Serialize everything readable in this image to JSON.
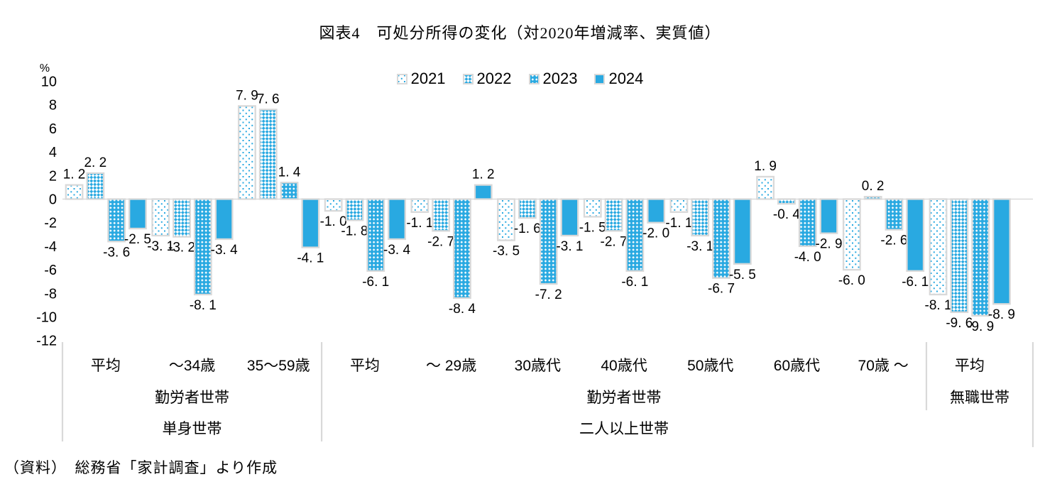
{
  "source_note": "（資料）　総務省「家計調査」より作成",
  "colors": {
    "accent": "#29A9E1",
    "outline": "#D9D9D9",
    "text": "#000000"
  },
  "chart_data": {
    "type": "bar",
    "title": "図表4　可処分所得の変化（対2020年増減率、実質値）",
    "xlabel": "",
    "ylabel": "%",
    "ylim": [
      -12,
      10
    ],
    "yticks": [
      10,
      8,
      6,
      4,
      2,
      0,
      -2,
      -4,
      -6,
      -8,
      -10,
      -12
    ],
    "grid": false,
    "legend_position": "top",
    "value_labels": true,
    "categories": [
      "平均",
      "～34歳",
      "35～59歳",
      "平均",
      "～ 29歳",
      "30歳代",
      "40歳代",
      "50歳代",
      "60歳代",
      "70歳 ～",
      "平均"
    ],
    "series": [
      {
        "name": "2021",
        "pattern": "dots",
        "values": [
          1.2,
          -3.1,
          7.9,
          -1.0,
          -1.1,
          -3.5,
          -1.5,
          -1.1,
          1.9,
          -6.0,
          -8.1
        ]
      },
      {
        "name": "2022",
        "pattern": "check-light",
        "values": [
          2.2,
          -3.2,
          7.6,
          -1.8,
          -2.7,
          -1.6,
          -2.7,
          -3.1,
          -0.4,
          0.2,
          -9.6
        ]
      },
      {
        "name": "2023",
        "pattern": "check-dense",
        "values": [
          -3.6,
          -8.1,
          1.4,
          -6.1,
          -8.4,
          -7.2,
          -6.1,
          -6.7,
          -4.0,
          -2.6,
          -9.9
        ]
      },
      {
        "name": "2024",
        "pattern": "solid",
        "values": [
          -2.5,
          -3.4,
          -4.1,
          -3.4,
          1.2,
          -3.1,
          -2.0,
          -5.5,
          -2.9,
          -6.1,
          -8.9
        ]
      }
    ],
    "sections": [
      {
        "tier2": "勤労者世帯",
        "tier3": "単身世帯",
        "from": 0,
        "to": 2
      },
      {
        "tier2": "勤労者世帯",
        "tier3": "二人以上世帯",
        "from": 3,
        "to": 9
      },
      {
        "tier2": "無職世帯",
        "tier3": "",
        "from": 10,
        "to": 10
      }
    ]
  }
}
